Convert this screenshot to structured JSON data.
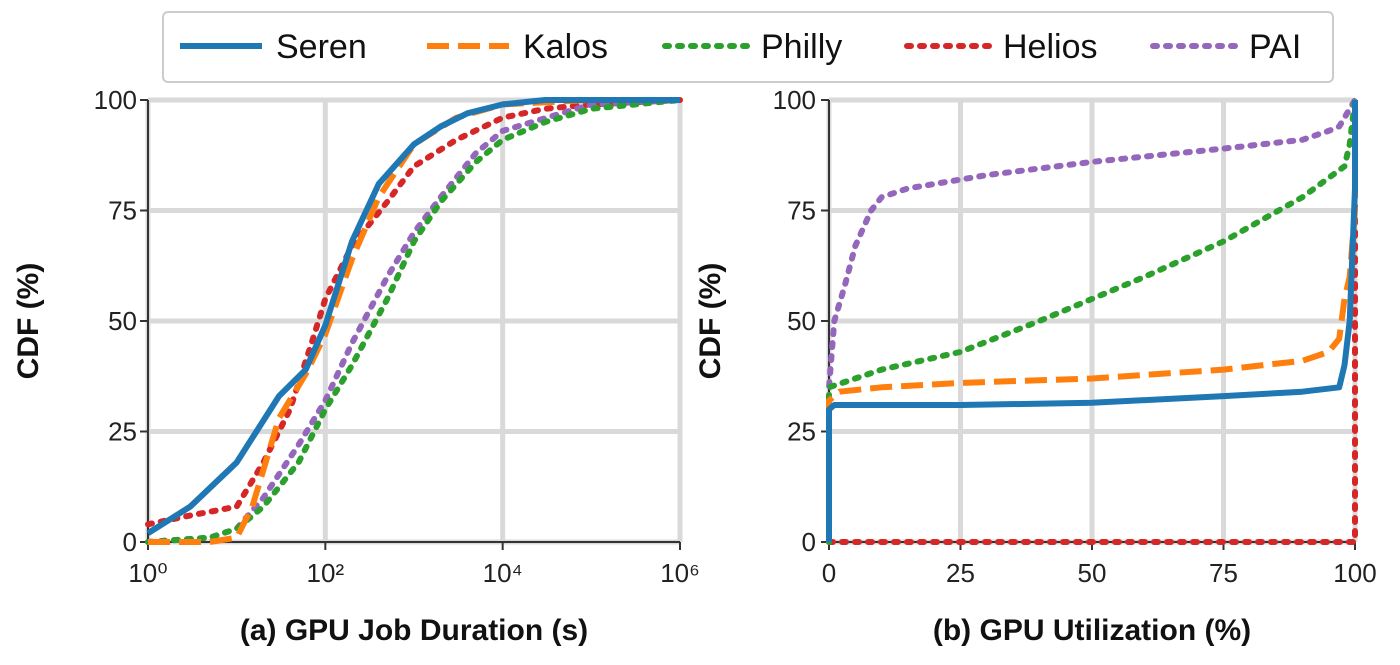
{
  "legend": {
    "placement": "top-center",
    "entries": [
      {
        "name": "Seren",
        "color": "#1f77b4",
        "dash": "solid"
      },
      {
        "name": "Kalos",
        "color": "#ff7f0e",
        "dash": "dashed"
      },
      {
        "name": "Philly",
        "color": "#2ca02c",
        "dash": "dotted"
      },
      {
        "name": "Helios",
        "color": "#d62728",
        "dash": "dotted"
      },
      {
        "name": "PAI",
        "color": "#9467bd",
        "dash": "dotted"
      }
    ]
  },
  "chart_data": [
    {
      "type": "line",
      "caption": "(a) GPU Job Duration (s)",
      "xlabel": "",
      "ylabel": "CDF (%)",
      "xscale": "log",
      "xlim": [
        1,
        1000000
      ],
      "ylim": [
        0,
        100
      ],
      "grid": true,
      "xticks": [
        {
          "value": 1,
          "label": "10⁰"
        },
        {
          "value": 100,
          "label": "10²"
        },
        {
          "value": 10000,
          "label": "10⁴"
        },
        {
          "value": 1000000,
          "label": "10⁶"
        }
      ],
      "yticks": [
        {
          "value": 0,
          "label": "0"
        },
        {
          "value": 25,
          "label": "25"
        },
        {
          "value": 50,
          "label": "50"
        },
        {
          "value": 75,
          "label": "75"
        },
        {
          "value": 100,
          "label": "100"
        }
      ],
      "series": [
        {
          "name": "Seren",
          "x": [
            1,
            3,
            10,
            30,
            60,
            100,
            200,
            400,
            1000,
            2000,
            4000,
            10000,
            30000,
            100000,
            1000000
          ],
          "y": [
            2,
            8,
            18,
            33,
            39,
            49,
            68,
            81,
            90,
            94,
            97,
            99,
            100,
            100,
            100
          ]
        },
        {
          "name": "Kalos",
          "x": [
            1,
            5,
            10,
            15,
            30,
            60,
            100,
            200,
            400,
            1000,
            3000,
            10000,
            100000,
            1000000
          ],
          "y": [
            0,
            0,
            1,
            8,
            28,
            38,
            47,
            64,
            78,
            90,
            96,
            99,
            100,
            100
          ]
        },
        {
          "name": "Philly",
          "x": [
            1,
            5,
            10,
            20,
            50,
            100,
            200,
            500,
            1000,
            2000,
            5000,
            10000,
            30000,
            100000,
            1000000
          ],
          "y": [
            0,
            1,
            3,
            8,
            18,
            30,
            40,
            55,
            68,
            77,
            86,
            91,
            95,
            98,
            100
          ]
        },
        {
          "name": "Helios",
          "x": [
            1,
            3,
            10,
            20,
            40,
            70,
            100,
            200,
            500,
            1000,
            3000,
            10000,
            30000,
            100000,
            1000000
          ],
          "y": [
            4,
            6,
            8,
            18,
            30,
            45,
            55,
            67,
            77,
            85,
            91,
            96,
            98,
            99,
            100
          ]
        },
        {
          "name": "PAI",
          "x": [
            1,
            5,
            10,
            20,
            50,
            100,
            200,
            500,
            1000,
            2000,
            5000,
            10000,
            100000,
            1000000
          ],
          "y": [
            0,
            1,
            3,
            10,
            22,
            32,
            45,
            60,
            70,
            78,
            88,
            93,
            99,
            100
          ]
        }
      ]
    },
    {
      "type": "line",
      "caption": "(b) GPU Utilization (%)",
      "xlabel": "",
      "ylabel": "CDF (%)",
      "xlim": [
        0,
        100
      ],
      "ylim": [
        0,
        100
      ],
      "grid": true,
      "xticks": [
        {
          "value": 0,
          "label": "0"
        },
        {
          "value": 25,
          "label": "25"
        },
        {
          "value": 50,
          "label": "50"
        },
        {
          "value": 75,
          "label": "75"
        },
        {
          "value": 100,
          "label": "100"
        }
      ],
      "yticks": [
        {
          "value": 0,
          "label": "0"
        },
        {
          "value": 25,
          "label": "25"
        },
        {
          "value": 50,
          "label": "50"
        },
        {
          "value": 75,
          "label": "75"
        },
        {
          "value": 100,
          "label": "100"
        }
      ],
      "series": [
        {
          "name": "Seren",
          "x": [
            0,
            0,
            1,
            25,
            50,
            75,
            90,
            97,
            98,
            99,
            100,
            100
          ],
          "y": [
            0,
            30,
            31,
            31,
            31.5,
            33,
            34,
            35,
            40,
            50,
            80,
            100
          ]
        },
        {
          "name": "Kalos",
          "x": [
            0,
            0,
            2,
            10,
            25,
            50,
            75,
            90,
            95,
            97,
            98,
            99,
            100,
            100
          ],
          "y": [
            0,
            32,
            34,
            35,
            36,
            37,
            39,
            41,
            43,
            46,
            55,
            60,
            75,
            100
          ]
        },
        {
          "name": "Philly",
          "x": [
            0,
            0,
            5,
            10,
            25,
            40,
            50,
            60,
            75,
            90,
            98,
            99,
            100
          ],
          "y": [
            0,
            35,
            37,
            39,
            43,
            50,
            55,
            60,
            68,
            78,
            85,
            90,
            100
          ]
        },
        {
          "name": "Helios",
          "x": [
            0,
            0,
            100,
            100
          ],
          "y": [
            0,
            0,
            0,
            100
          ]
        },
        {
          "name": "PAI",
          "x": [
            0,
            0,
            1,
            3,
            5,
            8,
            10,
            15,
            20,
            25,
            30,
            50,
            75,
            90,
            95,
            97,
            98,
            99,
            100
          ],
          "y": [
            0,
            35,
            50,
            58,
            67,
            75,
            78,
            80,
            81,
            82,
            83,
            86,
            89,
            91,
            93,
            94,
            96,
            98,
            100
          ]
        }
      ]
    }
  ]
}
